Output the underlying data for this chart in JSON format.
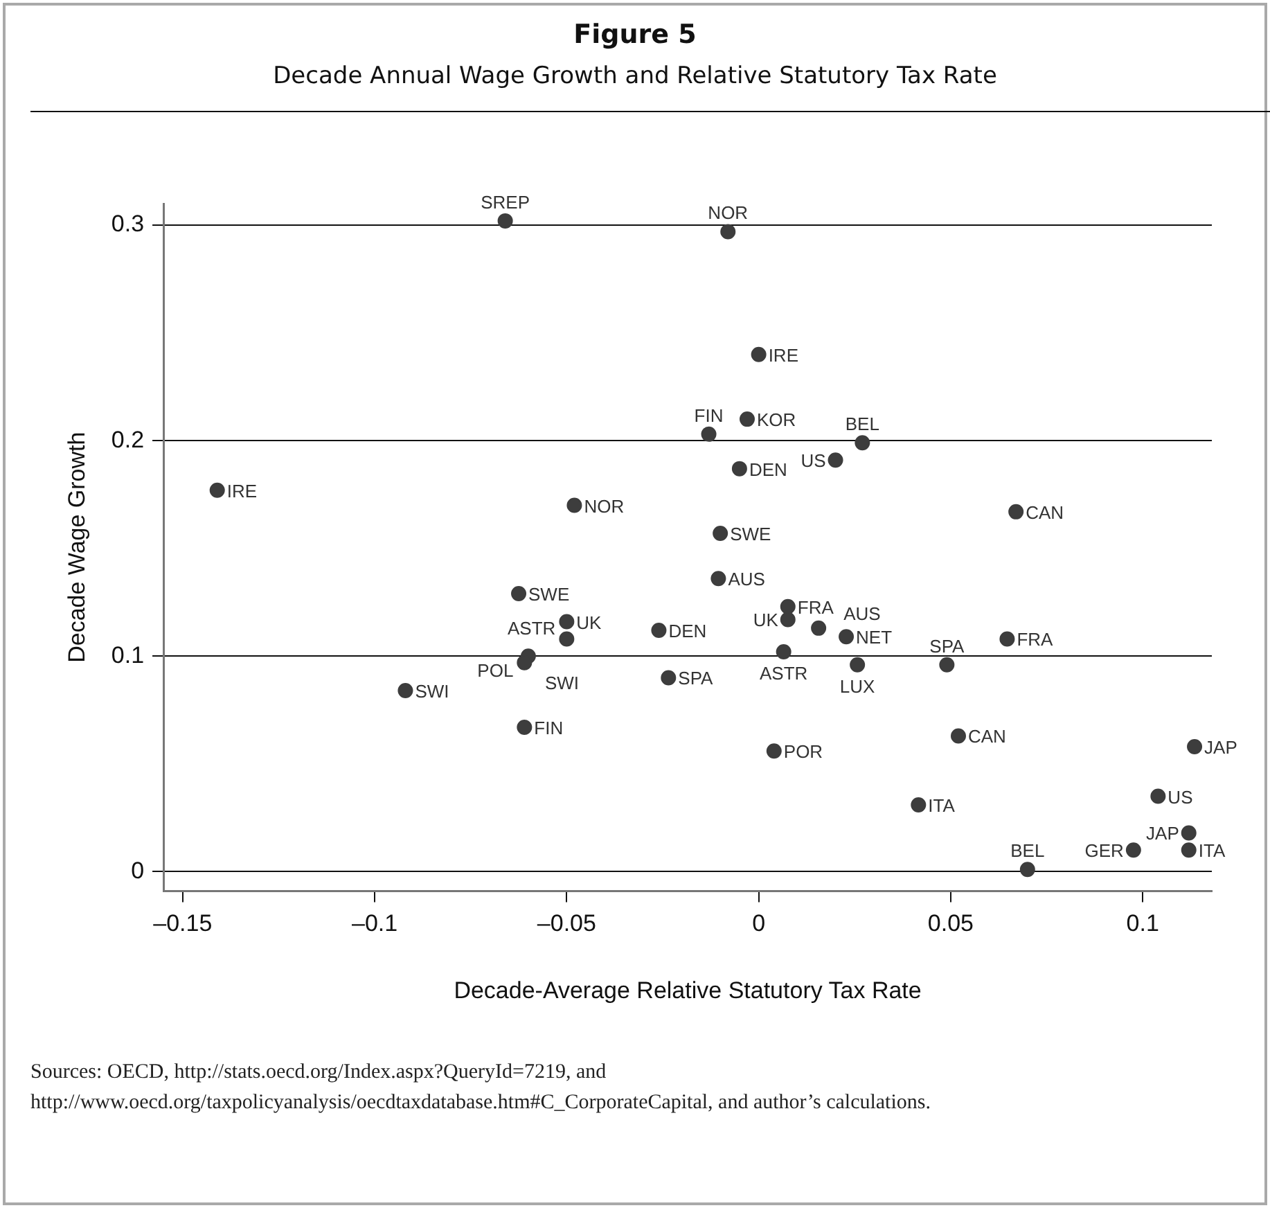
{
  "chart_data": {
    "type": "scatter",
    "title": "Figure 5",
    "subtitle": "Decade Annual Wage Growth and Relative Statutory Tax Rate",
    "xlabel": "Decade-Average Relative Statutory Tax Rate",
    "ylabel": "Decade Wage Growth",
    "x": [
      -0.066,
      -0.141,
      -0.048,
      -0.008,
      0.0,
      -0.003,
      -0.013,
      0.027,
      0.02,
      -0.005,
      0.067,
      -0.01,
      -0.0625,
      -0.05,
      -0.05,
      -0.026,
      -0.06,
      -0.061,
      -0.092,
      -0.061,
      -0.0235,
      -0.0105,
      0.0076,
      0.0076,
      0.0156,
      0.0228,
      0.0065,
      0.0257,
      0.049,
      0.0647,
      0.004,
      0.052,
      0.0416,
      0.07,
      0.104,
      0.0976,
      0.112,
      0.112,
      0.1135
    ],
    "series": [
      {
        "color": "#3d3d3d",
        "values": [
          0.302,
          0.177,
          0.17,
          0.297,
          0.24,
          0.21,
          0.203,
          0.199,
          0.191,
          0.187,
          0.167,
          0.157,
          0.129,
          0.116,
          0.108,
          0.112,
          0.1,
          0.097,
          0.084,
          0.067,
          0.09,
          0.136,
          0.123,
          0.117,
          0.113,
          0.109,
          0.102,
          0.096,
          0.096,
          0.108,
          0.056,
          0.063,
          0.031,
          0.001,
          0.035,
          0.01,
          0.01,
          0.018,
          0.058
        ]
      }
    ],
    "xlim": [
      -0.155,
      0.118
    ],
    "ylim": [
      -0.009,
      0.31
    ],
    "xticks": [
      {
        "value": -0.15,
        "label": "–0.15"
      },
      {
        "value": -0.1,
        "label": "–0.1"
      },
      {
        "value": -0.05,
        "label": "–0.05"
      },
      0,
      0.05,
      0.1
    ],
    "yticks": [
      0,
      0.1,
      0.2,
      0.3
    ],
    "grid": "y",
    "legend": false,
    "marker": "circle",
    "annotations": [
      {
        "text": "SREP",
        "x": -0.066,
        "y": 0.302
      },
      {
        "text": "IRE",
        "x": -0.141,
        "y": 0.177
      },
      {
        "text": "NOR",
        "x": -0.048,
        "y": 0.17
      },
      {
        "text": "NOR",
        "x": -0.008,
        "y": 0.297
      },
      {
        "text": "IRE",
        "x": 0.0,
        "y": 0.24
      },
      {
        "text": "KOR",
        "x": -0.003,
        "y": 0.21
      },
      {
        "text": "FIN",
        "x": -0.013,
        "y": 0.203
      },
      {
        "text": "BEL",
        "x": 0.027,
        "y": 0.199
      },
      {
        "text": "US",
        "x": 0.02,
        "y": 0.191
      },
      {
        "text": "DEN",
        "x": -0.005,
        "y": 0.187
      },
      {
        "text": "CAN",
        "x": 0.067,
        "y": 0.167
      },
      {
        "text": "SWE",
        "x": -0.01,
        "y": 0.157
      },
      {
        "text": "SWE",
        "x": -0.0625,
        "y": 0.129
      },
      {
        "text": "UK",
        "x": -0.05,
        "y": 0.116
      },
      {
        "text": "ASTR",
        "x": -0.05,
        "y": 0.108
      },
      {
        "text": "DEN",
        "x": -0.026,
        "y": 0.112
      },
      {
        "text": "SWI",
        "x": -0.06,
        "y": 0.1
      },
      {
        "text": "POL",
        "x": -0.061,
        "y": 0.097
      },
      {
        "text": "SWI",
        "x": -0.092,
        "y": 0.084
      },
      {
        "text": "FIN",
        "x": -0.061,
        "y": 0.067
      },
      {
        "text": "SPA",
        "x": -0.0235,
        "y": 0.09
      },
      {
        "text": "AUS",
        "x": -0.0105,
        "y": 0.136
      },
      {
        "text": "FRA",
        "x": 0.0076,
        "y": 0.123
      },
      {
        "text": "UK",
        "x": 0.0076,
        "y": 0.117
      },
      {
        "text": "AUS",
        "x": 0.0156,
        "y": 0.113
      },
      {
        "text": "NET",
        "x": 0.0228,
        "y": 0.109
      },
      {
        "text": "ASTR",
        "x": 0.0065,
        "y": 0.102
      },
      {
        "text": "LUX",
        "x": 0.0257,
        "y": 0.096
      },
      {
        "text": "SPA",
        "x": 0.049,
        "y": 0.096
      },
      {
        "text": "FRA",
        "x": 0.0647,
        "y": 0.108
      },
      {
        "text": "POR",
        "x": 0.004,
        "y": 0.056
      },
      {
        "text": "CAN",
        "x": 0.052,
        "y": 0.063
      },
      {
        "text": "ITA",
        "x": 0.0416,
        "y": 0.031
      },
      {
        "text": "BEL",
        "x": 0.07,
        "y": 0.001
      },
      {
        "text": "US",
        "x": 0.104,
        "y": 0.035
      },
      {
        "text": "GER",
        "x": 0.0976,
        "y": 0.01
      },
      {
        "text": "ITA",
        "x": 0.112,
        "y": 0.01
      },
      {
        "text": "JAP",
        "x": 0.112,
        "y": 0.018
      },
      {
        "text": "JAP",
        "x": 0.1135,
        "y": 0.058
      },
      "Sources: OECD, http://stats.oecd.org/Index.aspx?QueryId=7219, and http://www.oecd.org/taxpolicyanalysis/oecdtaxdatabase.htm#C_CorporateCapital, and author’s calculations."
    ]
  }
}
